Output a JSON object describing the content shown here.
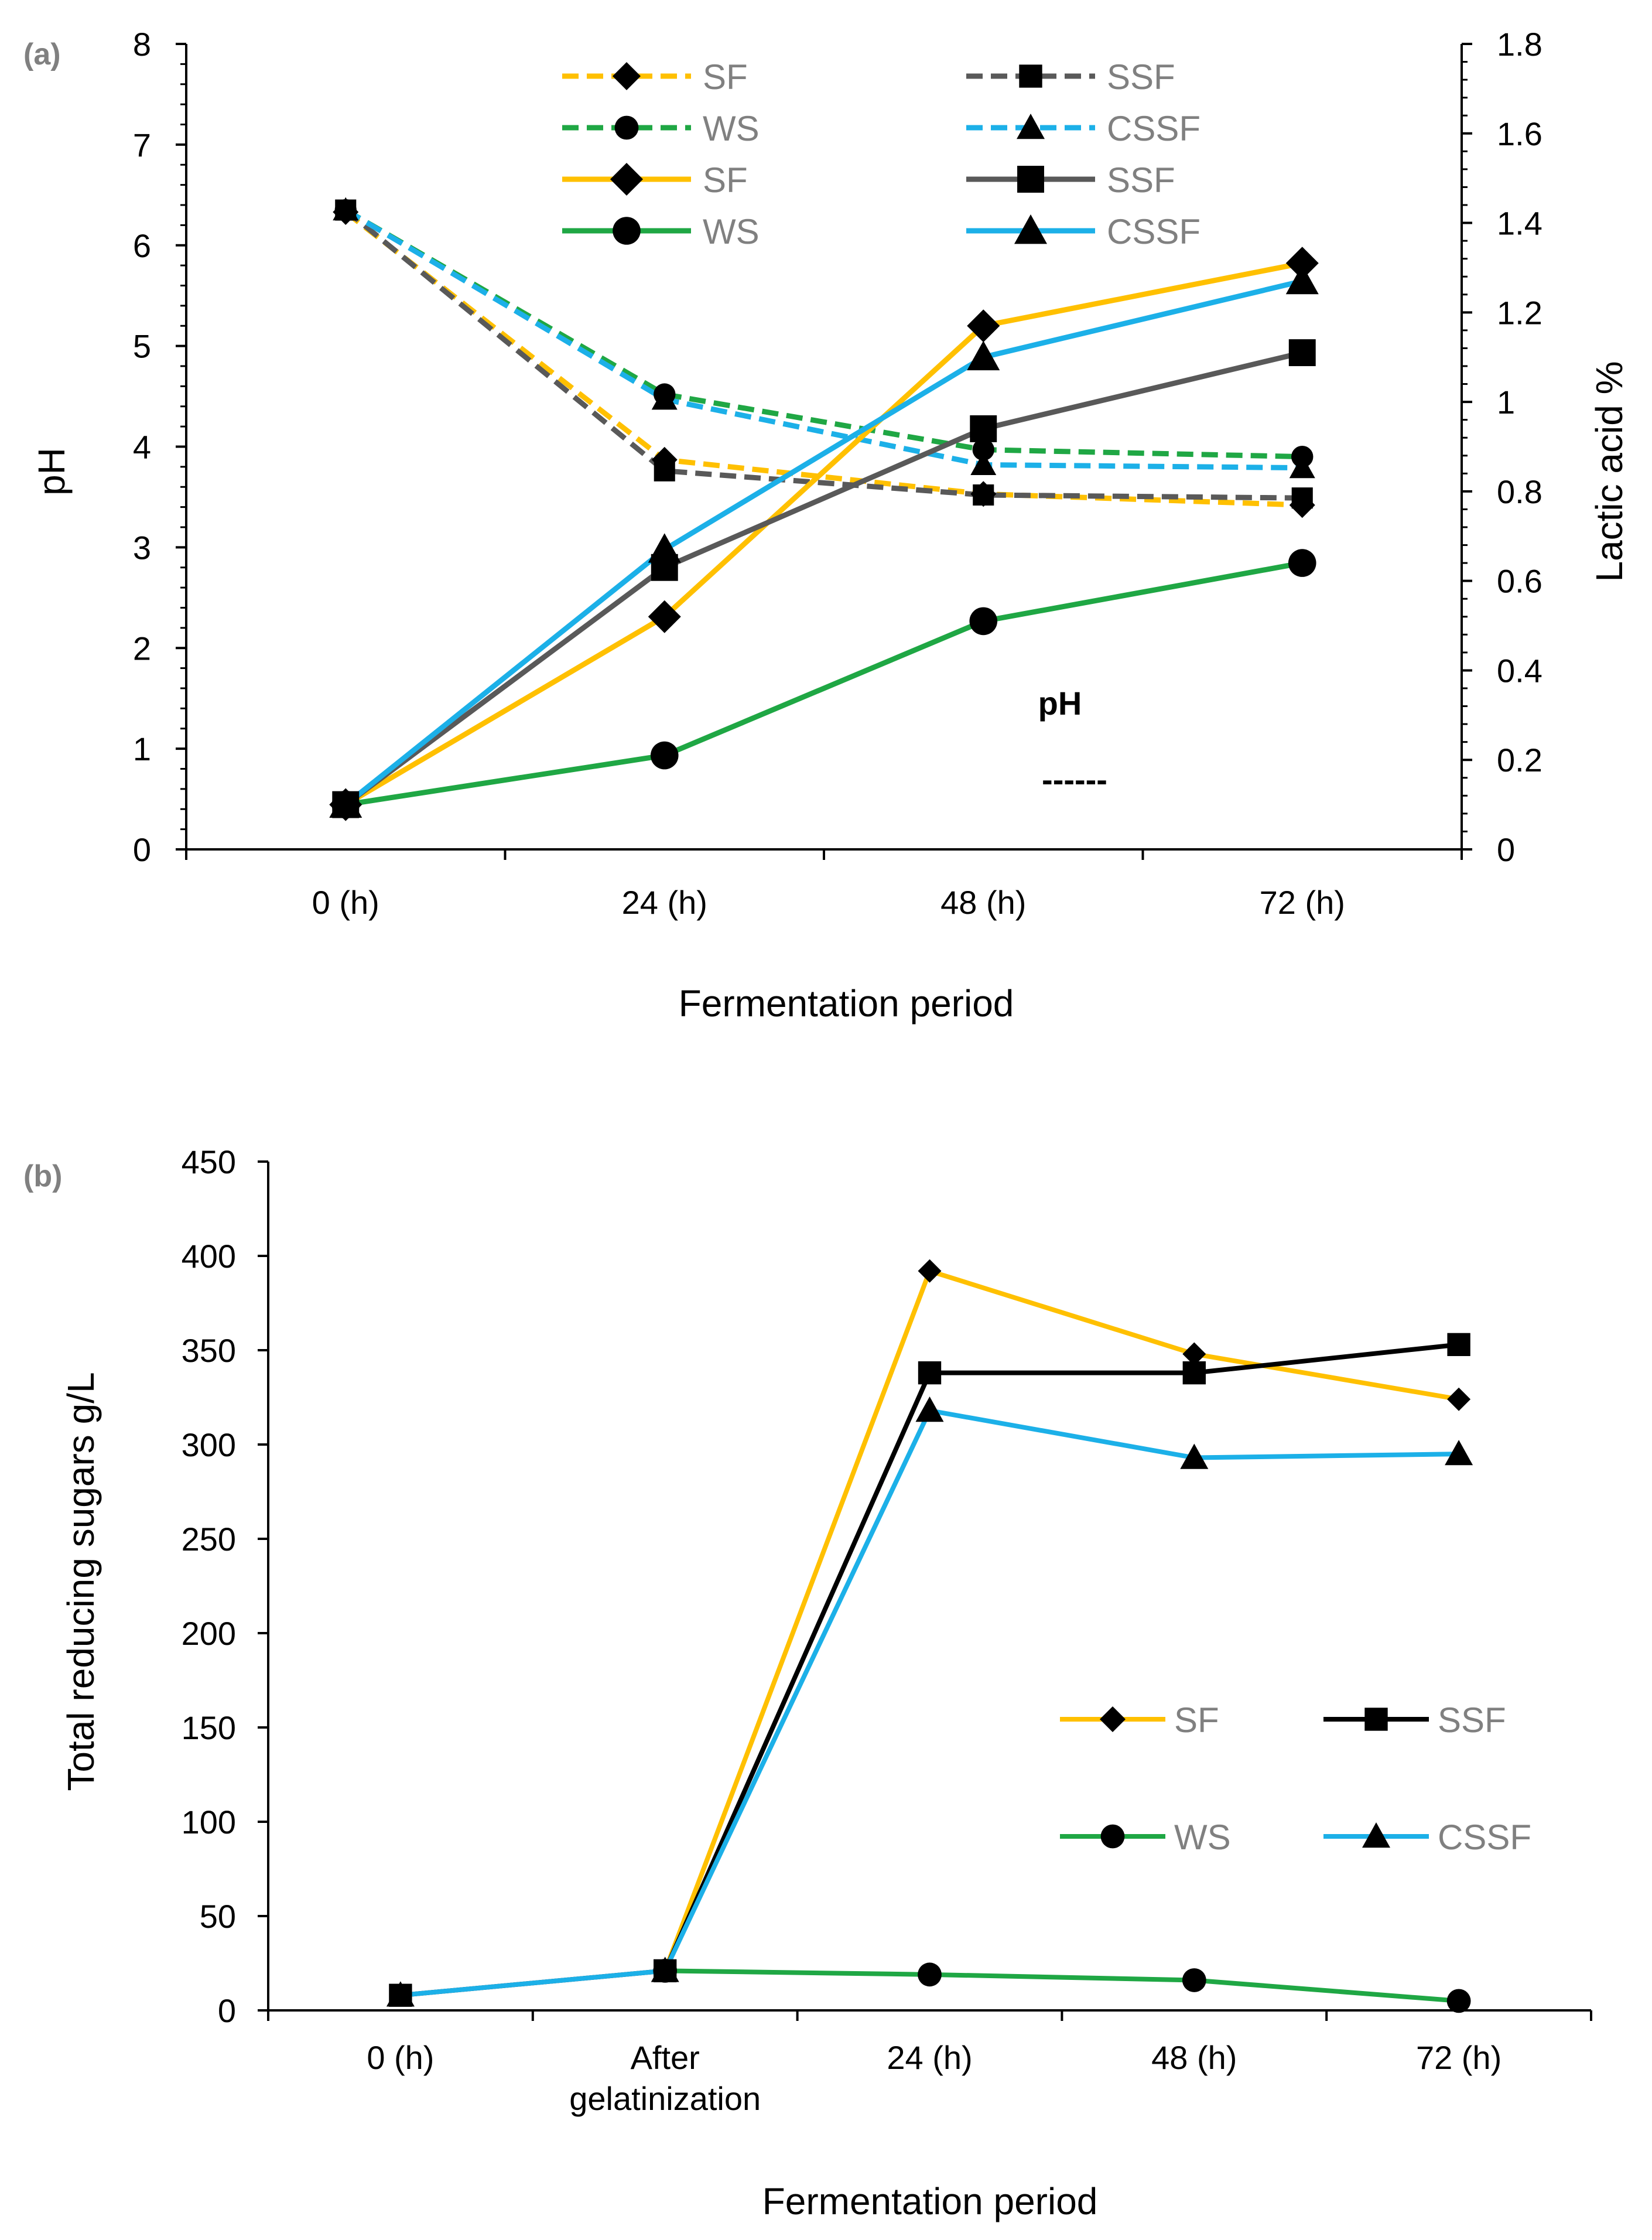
{
  "chart_data": [
    {
      "panel_label": "(a)",
      "type": "line",
      "categories": [
        "0 (h)",
        "24 (h)",
        "48 (h)",
        "72 (h)"
      ],
      "xlabel": "Fermentation period",
      "ylabel": "pH",
      "y2label": "Lactic acid %",
      "ylim": [
        0,
        8
      ],
      "yticks": [
        "0",
        "1",
        "2",
        "3",
        "4",
        "5",
        "6",
        "7",
        "8"
      ],
      "y2lim": [
        0,
        1.8
      ],
      "y2ticks": [
        "0",
        "0.2",
        "0.4",
        "0.6",
        "0.8",
        "1",
        "1.2",
        "1.4",
        "1.6",
        "1.8"
      ],
      "annotation_title": "pH",
      "annotation_dash": "------",
      "grid": false,
      "legend_position": "top",
      "series": [
        {
          "name": "SF",
          "axis": "pH",
          "style": "dashed",
          "marker": "diamond",
          "color": "#FFC000",
          "values": [
            6.33,
            3.87,
            3.53,
            3.42
          ]
        },
        {
          "name": "SSF",
          "axis": "pH",
          "style": "dashed",
          "marker": "square",
          "color": "#595959",
          "values": [
            6.35,
            3.76,
            3.52,
            3.49
          ]
        },
        {
          "name": "WS",
          "axis": "pH",
          "style": "dashed",
          "marker": "circle",
          "color": "#1FA744",
          "values": [
            6.35,
            4.52,
            3.97,
            3.9
          ]
        },
        {
          "name": "CSSF",
          "axis": "pH",
          "style": "dashed",
          "marker": "triangle",
          "color": "#1CB0E8",
          "values": [
            6.35,
            4.47,
            3.82,
            3.79
          ]
        },
        {
          "name": "SF",
          "axis": "lactic",
          "style": "solid",
          "marker": "diamond",
          "color": "#FFC000",
          "values": [
            0.1,
            0.52,
            1.17,
            1.31
          ]
        },
        {
          "name": "SSF",
          "axis": "lactic",
          "style": "solid",
          "marker": "square",
          "color": "#595959",
          "values": [
            0.1,
            0.63,
            0.94,
            1.11
          ]
        },
        {
          "name": "WS",
          "axis": "lactic",
          "style": "solid",
          "marker": "circle",
          "color": "#1FA744",
          "values": [
            0.1,
            0.21,
            0.51,
            0.64
          ]
        },
        {
          "name": "CSSF",
          "axis": "lactic",
          "style": "solid",
          "marker": "triangle",
          "color": "#1CB0E8",
          "values": [
            0.1,
            0.67,
            1.1,
            1.27
          ]
        }
      ]
    },
    {
      "panel_label": "(b)",
      "type": "line",
      "categories": [
        "0 (h)",
        "After gelatinization",
        "24 (h)",
        "48 (h)",
        "72 (h)"
      ],
      "xlabel": "Fermentation period",
      "ylabel": "Total reducing sugars g/L",
      "ylim": [
        0,
        450
      ],
      "yticks": [
        "0",
        "50",
        "100",
        "150",
        "200",
        "250",
        "300",
        "350",
        "400",
        "450"
      ],
      "grid": false,
      "legend_position": "center-right",
      "series": [
        {
          "name": "SF",
          "marker": "diamond",
          "color": "#FFC000",
          "values": [
            null,
            21,
            392,
            348,
            324
          ]
        },
        {
          "name": "SSF",
          "marker": "square",
          "color": "#000000",
          "values": [
            8,
            21,
            338,
            338,
            353
          ]
        },
        {
          "name": "WS",
          "marker": "circle",
          "color": "#1FA744",
          "values": [
            null,
            21,
            19,
            16,
            5
          ]
        },
        {
          "name": "CSSF",
          "marker": "triangle",
          "color": "#1CB0E8",
          "values": [
            8,
            21,
            318,
            293,
            295
          ]
        }
      ]
    }
  ]
}
